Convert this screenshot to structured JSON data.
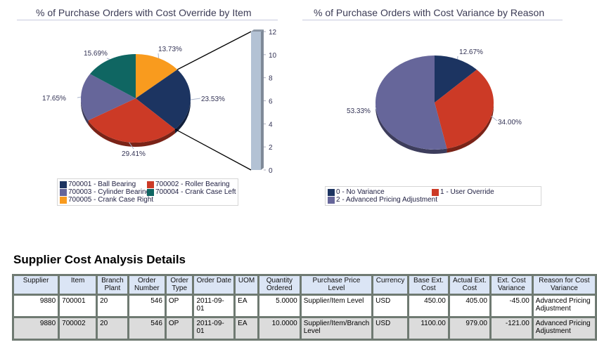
{
  "chart_data": [
    {
      "type": "pie",
      "title": "% of Purchase Orders with Cost Override by Item",
      "categories": [
        "700001 - Ball Bearing",
        "700002 - Roller Bearing",
        "700003 - Cylinder Bearing",
        "700004 - Crank Case Left",
        "700005 - Crank Case Right"
      ],
      "values": [
        23.53,
        29.41,
        17.65,
        15.69,
        13.73
      ],
      "labels": [
        "23.53%",
        "29.41%",
        "17.65%",
        "15.69%",
        "13.73%"
      ],
      "colors": [
        "#1c3461",
        "#cc3a26",
        "#66669a",
        "#0f6662",
        "#f99b1e"
      ],
      "legend": "bottom",
      "breakout_bar": {
        "ylim": [
          0,
          12
        ],
        "ticks": [
          "0",
          "2",
          "4",
          "6",
          "8",
          "10",
          "12"
        ],
        "value": 12,
        "color": "#b3c2d4"
      }
    },
    {
      "type": "pie",
      "title": "% of Purchase Orders with Cost Variance by Reason",
      "categories": [
        "0 - No Variance",
        "1 - User Override",
        "2 - Advanced Pricing Adjustment"
      ],
      "values": [
        12.67,
        34.0,
        53.33
      ],
      "labels": [
        "12.67%",
        "34.00%",
        "53.33%"
      ],
      "colors": [
        "#1c3461",
        "#cc3a26",
        "#66669a"
      ],
      "legend": "bottom"
    }
  ],
  "details": {
    "title": "Supplier Cost Analysis Details",
    "columns": [
      "Supplier",
      "Item",
      "Branch Plant",
      "Order Number",
      "Order Type",
      "Order Date",
      "UOM",
      "Quantity Ordered",
      "Purchase Price Level",
      "Currency",
      "Base Ext. Cost",
      "Actual Ext. Cost",
      "Ext. Cost Variance",
      "Reason for Cost Variance"
    ],
    "rows": [
      [
        "9880",
        "700001",
        "20",
        "546",
        "OP",
        "2011-09-01",
        "EA",
        "5.0000",
        "Supplier/Item Level",
        "USD",
        "450.00",
        "405.00",
        "-45.00",
        "Advanced Pricing Adjustment"
      ],
      [
        "9880",
        "700002",
        "20",
        "546",
        "OP",
        "2011-09-01",
        "EA",
        "10.0000",
        "Supplier/Item/Branch Level",
        "USD",
        "1100.00",
        "979.00",
        "-121.00",
        "Advanced Pricing Adjustment"
      ]
    ]
  }
}
